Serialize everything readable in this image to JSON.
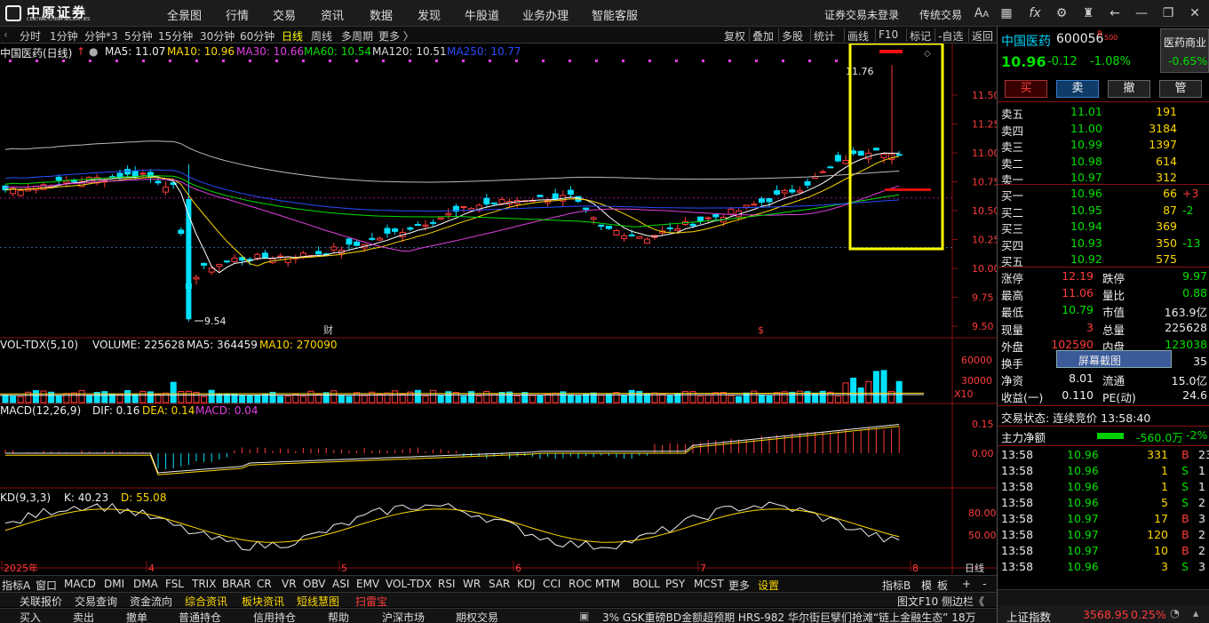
{
  "menu": {
    "items": [
      "全景图",
      "行情",
      "交易",
      "资讯",
      "数据",
      "发现",
      "牛股道",
      "业务办理",
      "智能客服"
    ],
    "right_status": "证券交易未登录",
    "right_trade": "传统交易"
  },
  "logo": {
    "name": "中原证券",
    "sub": "CENTRAL CHINA SECURITIES"
  },
  "period": {
    "items": [
      "分时",
      "1分钟",
      "分钟*3",
      "5分钟",
      "15分钟",
      "30分钟",
      "60分钟",
      "日线",
      "周线",
      "多周期",
      "更多 〉"
    ],
    "active": "日线",
    "right": [
      "复权",
      "叠加",
      "多股",
      "统计",
      "画线",
      "F10",
      "标记",
      "-自选",
      "返回"
    ]
  },
  "main_legend": {
    "title": "中国医药(日线)",
    "ma5": "MA5: 11.07",
    "ma10": "MA10: 10.96",
    "ma30": "MA30: 10.66",
    "ma60": "MA60: 10.54",
    "ma120": "MA120: 10.51",
    "ma250": "MA250: 10.77"
  },
  "price_axis": [
    "11.50",
    "11.25",
    "11.00",
    "10.75",
    "10.50",
    "10.25",
    "10.00",
    "9.75",
    "9.50"
  ],
  "annotations": {
    "high": "11.76",
    "low": "9.54",
    "fin1": "财",
    "fin2": "$"
  },
  "vol_legend": {
    "name": "VOL-TDX(5,10)",
    "volume": "VOLUME: 225628",
    "ma5": "MA5: 364459",
    "ma10": "MA10: 270090",
    "axis": [
      "60000",
      "30000"
    ],
    "unit": "X10"
  },
  "macd_legend": {
    "name": "MACD(12,26,9)",
    "dif": "DIF: 0.16",
    "dea": "DEA: 0.14",
    "macd": "MACD: 0.04",
    "axis": [
      "0.15",
      "0.00"
    ]
  },
  "kd_legend": {
    "name": "KD(9,3,3)",
    "k": "K: 40.23",
    "d": "D: 55.08",
    "axis": [
      "80.00",
      "50.00"
    ]
  },
  "date_axis": {
    "labels": [
      "2025年",
      "4",
      "5",
      "6",
      "7",
      "8"
    ],
    "unit": "日线"
  },
  "bottom_tabs": [
    "指标A",
    "窗口",
    "MACD",
    "DMI",
    "DMA",
    "FSL",
    "TRIX",
    "BRAR",
    "CR",
    "VR",
    "OBV",
    "ASI",
    "EMV",
    "VOL-TDX",
    "RSI",
    "WR",
    "SAR",
    "KDJ",
    "CCI",
    "ROC",
    "MTM",
    "BOLL",
    "PSY",
    "MCST",
    "更多",
    "设置"
  ],
  "bottom_right": [
    "指标B",
    "模",
    "板",
    "+",
    "-"
  ],
  "row2": [
    "关联报价",
    "交易查询",
    "资金流向",
    "综合资讯",
    "板块资讯",
    "短线慧图",
    "扫雷宝"
  ],
  "row2_right": "图文F10 侧边栏《",
  "row3": [
    "买入",
    "卖出",
    "撤单",
    "普通持仓",
    "信用持仓",
    "帮助",
    "沪深市场",
    "期权交易"
  ],
  "ticker": "3% GSK重磅BD金额超预期 HRS-982    华尔街巨擘们抢滩“链上金融生态” 18万",
  "index": {
    "name": "上证指数",
    "value": "3568.95",
    "change": "0.25%"
  },
  "stock": {
    "name": "中国医药",
    "code": "600056",
    "badge": "R",
    "badge2": "500",
    "sector": "医药商业",
    "sector_change": "-0.65%",
    "price": "10.96",
    "change": "-0.12",
    "pct": "-1.08%"
  },
  "order_buttons": [
    "买",
    "卖",
    "撤",
    "管"
  ],
  "asks": [
    {
      "l": "卖五",
      "p": "11.01",
      "v": "191"
    },
    {
      "l": "卖四",
      "p": "11.00",
      "v": "3184"
    },
    {
      "l": "卖三",
      "p": "10.99",
      "v": "1397"
    },
    {
      "l": "卖二",
      "p": "10.98",
      "v": "614"
    },
    {
      "l": "卖一",
      "p": "10.97",
      "v": "312"
    }
  ],
  "bids": [
    {
      "l": "买一",
      "p": "10.96",
      "v": "66",
      "c": "+3"
    },
    {
      "l": "买二",
      "p": "10.95",
      "v": "87",
      "c": "-2"
    },
    {
      "l": "买三",
      "p": "10.94",
      "v": "369",
      "c": ""
    },
    {
      "l": "买四",
      "p": "10.93",
      "v": "350",
      "c": "-13"
    },
    {
      "l": "买五",
      "p": "10.92",
      "v": "575",
      "c": ""
    }
  ],
  "stats": [
    {
      "a": "涨停",
      "av": "12.19",
      "b": "跌停",
      "bv": "9.97"
    },
    {
      "a": "最高",
      "av": "11.06",
      "b": "量比",
      "bv": "0.88"
    },
    {
      "a": "最低",
      "av": "10.79",
      "b": "市值",
      "bv": "163.9亿"
    },
    {
      "a": "现量",
      "av": "3",
      "b": "总量",
      "bv": "225628"
    },
    {
      "a": "外盘",
      "av": "102590",
      "b": "内盘",
      "bv": "123038"
    },
    {
      "a": "换手",
      "av": "",
      "b": "",
      "bv": "35"
    },
    {
      "a": "净资",
      "av": "8.01",
      "b": "流通",
      "bv": "15.0亿"
    },
    {
      "a": "收益(一)",
      "av": "0.110",
      "b": "PE(动)",
      "bv": "24.6"
    }
  ],
  "tooltip": "屏幕截图",
  "trade_status": "交易状态: 连续竞价 13:58:40",
  "main_flow": {
    "label": "主力净额",
    "value": "-560.0万",
    "pct": "-2%"
  },
  "ticks": [
    {
      "t": "13:58",
      "p": "10.96",
      "v": "331",
      "s": "B",
      "n": "23"
    },
    {
      "t": "13:58",
      "p": "10.96",
      "v": "1",
      "s": "S",
      "n": "1"
    },
    {
      "t": "13:58",
      "p": "10.96",
      "v": "1",
      "s": "S",
      "n": "1"
    },
    {
      "t": "13:58",
      "p": "10.96",
      "v": "5",
      "s": "S",
      "n": "2"
    },
    {
      "t": "13:58",
      "p": "10.97",
      "v": "17",
      "s": "B",
      "n": "3"
    },
    {
      "t": "13:58",
      "p": "10.97",
      "v": "120",
      "s": "B",
      "n": "2"
    },
    {
      "t": "13:58",
      "p": "10.97",
      "v": "10",
      "s": "B",
      "n": "2"
    },
    {
      "t": "13:58",
      "p": "10.96",
      "v": "3",
      "s": "S",
      "n": "3"
    }
  ]
}
